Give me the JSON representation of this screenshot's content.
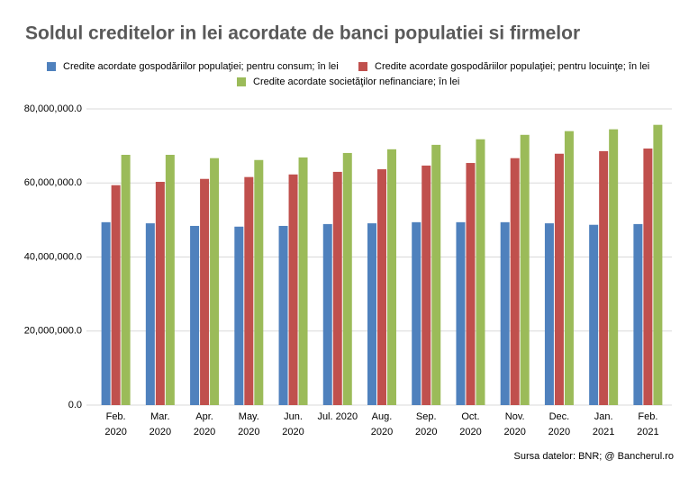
{
  "chart_data": {
    "type": "bar",
    "title": "Soldul creditelor in lei acordate de banci populatiei si firmelor",
    "categories": [
      "Feb.\n2020",
      "Mar.\n2020",
      "Apr.\n2020",
      "May.\n2020",
      "Jun.\n2020",
      "Jul. 2020",
      "Aug.\n2020",
      "Sep.\n2020",
      "Oct.\n2020",
      "Nov.\n2020",
      "Dec.\n2020",
      "Jan.\n2021",
      "Feb.\n2021"
    ],
    "series": [
      {
        "name": "Credite acordate gospodăriilor populaţiei; pentru consum; în lei",
        "color": "#4f81bd",
        "values": [
          49400000,
          49100000,
          48400000,
          48200000,
          48400000,
          48900000,
          49100000,
          49400000,
          49400000,
          49400000,
          49100000,
          48700000,
          48900000
        ]
      },
      {
        "name": "Credite acordate gospodăriilor populaţiei; pentru locuinţe; în lei",
        "color": "#c0504d",
        "values": [
          59400000,
          60300000,
          61100000,
          61600000,
          62300000,
          63000000,
          63700000,
          64700000,
          65400000,
          66700000,
          67900000,
          68600000,
          69300000
        ]
      },
      {
        "name": "Credite acordate societăţilor nefinanciare; în lei",
        "color": "#9bbb59",
        "values": [
          67600000,
          67600000,
          66700000,
          66200000,
          66900000,
          68100000,
          69100000,
          70300000,
          71800000,
          73000000,
          74000000,
          74500000,
          75700000
        ]
      }
    ],
    "ylim": [
      0,
      80000000
    ],
    "yticks": [
      {
        "value": 0,
        "label": "0.0"
      },
      {
        "value": 20000000,
        "label": "20,000,000.0"
      },
      {
        "value": 40000000,
        "label": "40,000,000.0"
      },
      {
        "value": 60000000,
        "label": "60,000,000.0"
      },
      {
        "value": 80000000,
        "label": "80,000,000.0"
      }
    ],
    "grid": true,
    "source": "Sursa datelor:  BNR; @ Bancherul.ro"
  }
}
